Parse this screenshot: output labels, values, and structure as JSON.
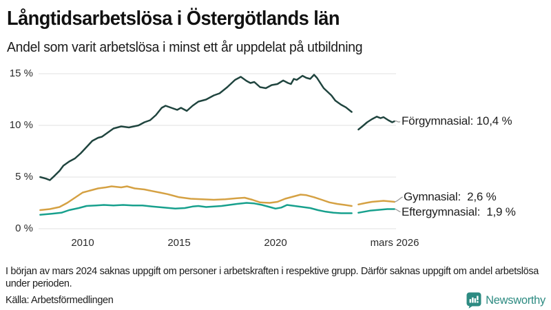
{
  "header": {
    "title": "Långtidsarbetslösa i Östergötlands län",
    "subtitle": "Andel som varit arbetslösa i minst ett år uppdelat på utbildning"
  },
  "chart_data": {
    "type": "line",
    "title": "Långtidsarbetslösa i Östergötlands län",
    "subtitle": "Andel som varit arbetslösa i minst ett år uppdelat på utbildning",
    "xlabel": "",
    "ylabel": "",
    "unit": "%",
    "grid": "horizontal",
    "gridline_color": "#e2e2e2",
    "x_range": [
      2007.8,
      2026.17
    ],
    "y_range": [
      0,
      15
    ],
    "y_ticks": [
      {
        "label": "0 %",
        "value": 0
      },
      {
        "label": "5 %",
        "value": 5
      },
      {
        "label": "10 %",
        "value": 10
      },
      {
        "label": "15 %",
        "value": 15
      }
    ],
    "x_ticks": [
      {
        "label": "2010",
        "year": 2010
      },
      {
        "label": "2015",
        "year": 2015
      },
      {
        "label": "2020",
        "year": 2020
      },
      {
        "label": "mars 2026",
        "year": 2026.17
      }
    ],
    "gap_period": "början av mars 2024",
    "series": [
      {
        "name": "Förgymnasial",
        "color": "#1f443e",
        "latest_value": 10.4,
        "value_label": "Förgymnasial: 10,4 %",
        "segments": [
          [
            [
              2007.8,
              5.0
            ],
            [
              2008.1,
              4.85
            ],
            [
              2008.3,
              4.7
            ],
            [
              2008.5,
              5.05
            ],
            [
              2008.8,
              5.6
            ],
            [
              2009.0,
              6.1
            ],
            [
              2009.3,
              6.5
            ],
            [
              2009.6,
              6.8
            ],
            [
              2009.9,
              7.3
            ],
            [
              2010.2,
              7.9
            ],
            [
              2010.5,
              8.5
            ],
            [
              2010.8,
              8.8
            ],
            [
              2011.0,
              8.9
            ],
            [
              2011.3,
              9.3
            ],
            [
              2011.6,
              9.7
            ],
            [
              2012.0,
              9.9
            ],
            [
              2012.4,
              9.8
            ],
            [
              2012.9,
              10.0
            ],
            [
              2013.2,
              10.3
            ],
            [
              2013.5,
              10.5
            ],
            [
              2013.8,
              11.0
            ],
            [
              2014.1,
              11.7
            ],
            [
              2014.3,
              11.9
            ],
            [
              2014.6,
              11.7
            ],
            [
              2014.9,
              11.5
            ],
            [
              2015.1,
              11.7
            ],
            [
              2015.4,
              11.4
            ],
            [
              2015.7,
              11.9
            ],
            [
              2016.0,
              12.3
            ],
            [
              2016.4,
              12.5
            ],
            [
              2016.8,
              12.9
            ],
            [
              2017.1,
              13.1
            ],
            [
              2017.5,
              13.7
            ],
            [
              2017.9,
              14.4
            ],
            [
              2018.2,
              14.7
            ],
            [
              2018.5,
              14.3
            ],
            [
              2018.7,
              14.1
            ],
            [
              2018.9,
              14.2
            ],
            [
              2019.2,
              13.7
            ],
            [
              2019.5,
              13.6
            ],
            [
              2019.8,
              13.9
            ],
            [
              2020.1,
              14.0
            ],
            [
              2020.4,
              14.35
            ],
            [
              2020.65,
              14.1
            ],
            [
              2020.8,
              14.0
            ],
            [
              2020.95,
              14.5
            ],
            [
              2021.1,
              14.4
            ],
            [
              2021.4,
              14.8
            ],
            [
              2021.6,
              14.6
            ],
            [
              2021.8,
              14.5
            ],
            [
              2022.0,
              14.9
            ],
            [
              2022.15,
              14.6
            ],
            [
              2022.5,
              13.6
            ],
            [
              2022.9,
              12.9
            ],
            [
              2023.1,
              12.4
            ],
            [
              2023.4,
              12.0
            ],
            [
              2023.65,
              11.75
            ],
            [
              2023.95,
              11.3
            ]
          ],
          [
            [
              2024.3,
              9.6
            ],
            [
              2024.5,
              9.9
            ],
            [
              2024.75,
              10.3
            ],
            [
              2025.0,
              10.6
            ],
            [
              2025.25,
              10.85
            ],
            [
              2025.45,
              10.7
            ],
            [
              2025.6,
              10.8
            ],
            [
              2025.85,
              10.5
            ],
            [
              2026.05,
              10.3
            ],
            [
              2026.17,
              10.4
            ]
          ]
        ]
      },
      {
        "name": "Gymnasial",
        "color": "#d5a143",
        "latest_value": 2.6,
        "value_label": "Gymnasial:  2,6 %",
        "segments": [
          [
            [
              2007.8,
              1.8
            ],
            [
              2008.3,
              1.9
            ],
            [
              2008.8,
              2.1
            ],
            [
              2009.2,
              2.5
            ],
            [
              2009.6,
              3.0
            ],
            [
              2010.0,
              3.5
            ],
            [
              2010.4,
              3.7
            ],
            [
              2010.8,
              3.9
            ],
            [
              2011.2,
              4.0
            ],
            [
              2011.5,
              4.1
            ],
            [
              2012.0,
              4.0
            ],
            [
              2012.3,
              4.1
            ],
            [
              2012.7,
              3.9
            ],
            [
              2013.2,
              3.8
            ],
            [
              2013.6,
              3.65
            ],
            [
              2014.0,
              3.5
            ],
            [
              2014.4,
              3.35
            ],
            [
              2015.0,
              3.05
            ],
            [
              2015.6,
              2.9
            ],
            [
              2016.2,
              2.85
            ],
            [
              2016.8,
              2.8
            ],
            [
              2017.4,
              2.85
            ],
            [
              2018.0,
              2.95
            ],
            [
              2018.4,
              3.0
            ],
            [
              2018.8,
              2.8
            ],
            [
              2019.2,
              2.55
            ],
            [
              2019.7,
              2.5
            ],
            [
              2020.1,
              2.6
            ],
            [
              2020.5,
              2.9
            ],
            [
              2020.9,
              3.1
            ],
            [
              2021.3,
              3.3
            ],
            [
              2021.6,
              3.25
            ],
            [
              2022.0,
              3.05
            ],
            [
              2022.4,
              2.8
            ],
            [
              2022.8,
              2.55
            ],
            [
              2023.2,
              2.4
            ],
            [
              2023.6,
              2.3
            ],
            [
              2023.95,
              2.2
            ]
          ],
          [
            [
              2024.3,
              2.35
            ],
            [
              2024.7,
              2.5
            ],
            [
              2025.0,
              2.6
            ],
            [
              2025.3,
              2.65
            ],
            [
              2025.6,
              2.7
            ],
            [
              2025.9,
              2.65
            ],
            [
              2026.17,
              2.6
            ]
          ]
        ]
      },
      {
        "name": "Eftergymnasial",
        "color": "#17a08d",
        "latest_value": 1.9,
        "value_label": "Eftergymnasial:  1,9 %",
        "segments": [
          [
            [
              2007.8,
              1.35
            ],
            [
              2008.4,
              1.45
            ],
            [
              2008.9,
              1.55
            ],
            [
              2009.3,
              1.8
            ],
            [
              2009.8,
              2.0
            ],
            [
              2010.2,
              2.2
            ],
            [
              2010.7,
              2.25
            ],
            [
              2011.1,
              2.3
            ],
            [
              2011.6,
              2.25
            ],
            [
              2012.1,
              2.3
            ],
            [
              2012.6,
              2.25
            ],
            [
              2013.1,
              2.25
            ],
            [
              2013.6,
              2.15
            ],
            [
              2014.2,
              2.05
            ],
            [
              2014.8,
              1.95
            ],
            [
              2015.3,
              2.0
            ],
            [
              2015.7,
              2.15
            ],
            [
              2016.0,
              2.2
            ],
            [
              2016.4,
              2.1
            ],
            [
              2016.8,
              2.15
            ],
            [
              2017.2,
              2.2
            ],
            [
              2017.6,
              2.3
            ],
            [
              2018.0,
              2.4
            ],
            [
              2018.5,
              2.5
            ],
            [
              2018.9,
              2.45
            ],
            [
              2019.3,
              2.3
            ],
            [
              2019.7,
              2.1
            ],
            [
              2020.0,
              1.95
            ],
            [
              2020.3,
              2.05
            ],
            [
              2020.6,
              2.3
            ],
            [
              2021.0,
              2.2
            ],
            [
              2021.4,
              2.1
            ],
            [
              2021.8,
              2.0
            ],
            [
              2022.2,
              1.8
            ],
            [
              2022.6,
              1.65
            ],
            [
              2023.0,
              1.55
            ],
            [
              2023.4,
              1.5
            ],
            [
              2023.95,
              1.5
            ]
          ],
          [
            [
              2024.3,
              1.55
            ],
            [
              2024.6,
              1.65
            ],
            [
              2024.9,
              1.75
            ],
            [
              2025.2,
              1.8
            ],
            [
              2025.5,
              1.85
            ],
            [
              2025.8,
              1.9
            ],
            [
              2026.17,
              1.9
            ]
          ]
        ]
      }
    ]
  },
  "footnote": "I början av mars 2024 saknas uppgift om personer i arbetskraften i respektive grupp. Därför saknas uppgift om andel arbetslösa under perioden.",
  "source": "Källa: Arbetsförmedlingen",
  "branding": {
    "name": "Newsworthy",
    "color": "#2d8b82"
  }
}
